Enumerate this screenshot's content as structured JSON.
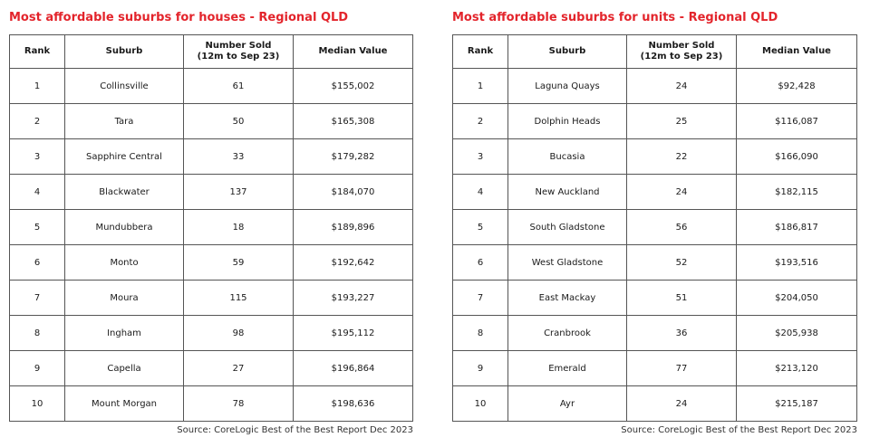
{
  "houses": {
    "title": "Most affordable suburbs for houses - Regional QLD",
    "headers": {
      "rank": "Rank",
      "suburb": "Suburb",
      "sold_line1": "Number Sold",
      "sold_line2": "(12m to Sep 23)",
      "value": "Median Value"
    },
    "rows": [
      {
        "rank": "1",
        "suburb": "Collinsville",
        "sold": "61",
        "value": "$155,002"
      },
      {
        "rank": "2",
        "suburb": "Tara",
        "sold": "50",
        "value": "$165,308"
      },
      {
        "rank": "3",
        "suburb": "Sapphire Central",
        "sold": "33",
        "value": "$179,282"
      },
      {
        "rank": "4",
        "suburb": "Blackwater",
        "sold": "137",
        "value": "$184,070"
      },
      {
        "rank": "5",
        "suburb": "Mundubbera",
        "sold": "18",
        "value": "$189,896"
      },
      {
        "rank": "6",
        "suburb": "Monto",
        "sold": "59",
        "value": "$192,642"
      },
      {
        "rank": "7",
        "suburb": "Moura",
        "sold": "115",
        "value": "$193,227"
      },
      {
        "rank": "8",
        "suburb": "Ingham",
        "sold": "98",
        "value": "$195,112"
      },
      {
        "rank": "9",
        "suburb": "Capella",
        "sold": "27",
        "value": "$196,864"
      },
      {
        "rank": "10",
        "suburb": "Mount Morgan",
        "sold": "78",
        "value": "$198,636"
      }
    ],
    "source": "Source: CoreLogic Best of the Best Report Dec 2023"
  },
  "units": {
    "title": "Most affordable suburbs for units - Regional QLD",
    "headers": {
      "rank": "Rank",
      "suburb": "Suburb",
      "sold_line1": "Number Sold",
      "sold_line2": "(12m to Sep 23)",
      "value": "Median Value"
    },
    "rows": [
      {
        "rank": "1",
        "suburb": "Laguna Quays",
        "sold": "24",
        "value": "$92,428"
      },
      {
        "rank": "2",
        "suburb": "Dolphin Heads",
        "sold": "25",
        "value": "$116,087"
      },
      {
        "rank": "3",
        "suburb": "Bucasia",
        "sold": "22",
        "value": "$166,090"
      },
      {
        "rank": "4",
        "suburb": "New Auckland",
        "sold": "24",
        "value": "$182,115"
      },
      {
        "rank": "5",
        "suburb": "South Gladstone",
        "sold": "56",
        "value": "$186,817"
      },
      {
        "rank": "6",
        "suburb": "West Gladstone",
        "sold": "52",
        "value": "$193,516"
      },
      {
        "rank": "7",
        "suburb": "East Mackay",
        "sold": "51",
        "value": "$204,050"
      },
      {
        "rank": "8",
        "suburb": "Cranbrook",
        "sold": "36",
        "value": "$205,938"
      },
      {
        "rank": "9",
        "suburb": "Emerald",
        "sold": "77",
        "value": "$213,120"
      },
      {
        "rank": "10",
        "suburb": "Ayr",
        "sold": "24",
        "value": "$215,187"
      }
    ],
    "source": "Source: CoreLogic Best of the Best Report Dec 2023"
  },
  "colors": {
    "title": "#e3242b",
    "border": "#555555"
  }
}
